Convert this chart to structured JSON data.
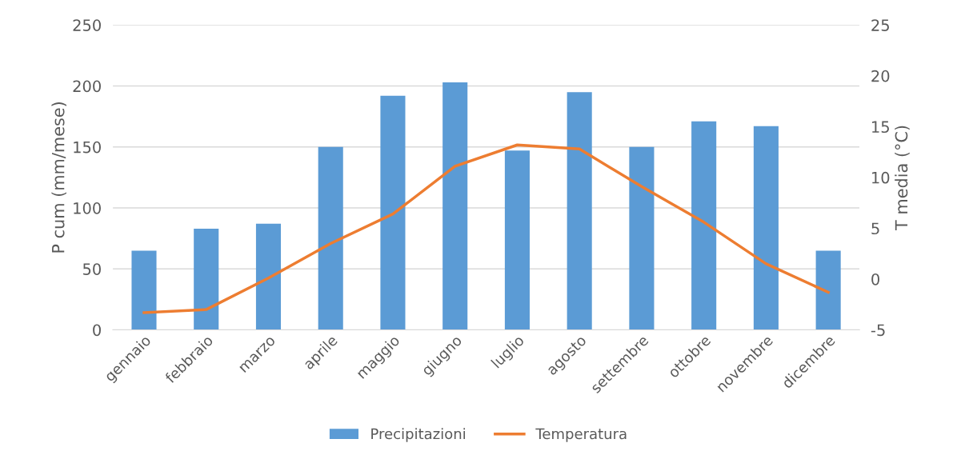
{
  "chart_data": {
    "type": "bar",
    "ylabel": "P cum (mm/mese)",
    "y2label": "T media (°C)",
    "categories": [
      "gennaio",
      "febbraio",
      "marzo",
      "aprile",
      "maggio",
      "giugno",
      "luglio",
      "agosto",
      "settembre",
      "ottobre",
      "novembre",
      "dicembre"
    ],
    "series": [
      {
        "name": "Precipitazioni",
        "color": "#5b9bd5",
        "values": [
          65,
          83,
          87,
          150,
          192,
          203,
          147,
          195,
          150,
          171,
          167,
          65
        ]
      },
      {
        "name": "Temperatura",
        "type": "line",
        "axis": "y2",
        "color": "#ed7d31",
        "values": [
          -3.3,
          -3.0,
          0.1,
          3.5,
          6.4,
          11.1,
          13.2,
          12.8,
          9.1,
          5.6,
          1.5,
          -1.3
        ]
      }
    ],
    "ylim": [
      0,
      250
    ],
    "yticks": [
      0,
      50,
      100,
      150,
      200,
      250
    ],
    "y2lim": [
      -5,
      25
    ],
    "y2ticks": [
      -5,
      0,
      5,
      10,
      15,
      20,
      25
    ],
    "grid": "y",
    "legend": "bottom",
    "marker": "none",
    "line_style": "solid"
  }
}
